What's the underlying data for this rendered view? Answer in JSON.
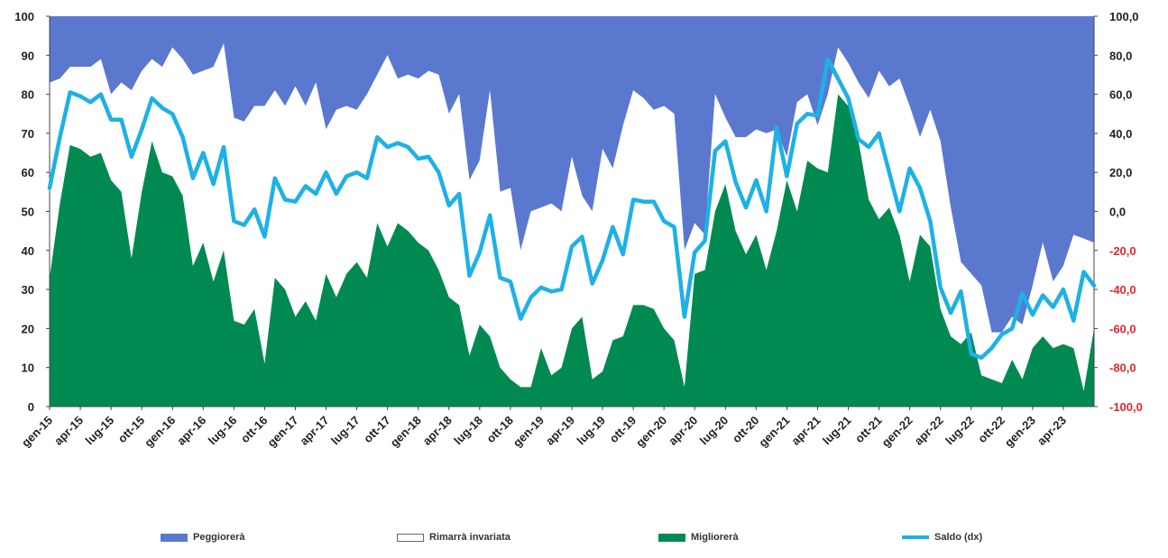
{
  "chart_data": {
    "type": "area",
    "title": "",
    "xlabel": "",
    "ylabel": "",
    "ylim": [
      0,
      100
    ],
    "y2lim": [
      -100,
      100
    ],
    "yticks": [
      "0",
      "10",
      "20",
      "30",
      "40",
      "50",
      "60",
      "70",
      "80",
      "90",
      "100"
    ],
    "y2ticks": [
      "-100,0",
      "-80,0",
      "-60,0",
      "-40,0",
      "-20,0",
      "0,0",
      "20,0",
      "40,0",
      "60,0",
      "80,0",
      "100,0"
    ],
    "xticks": [
      "gen-15",
      "apr-15",
      "lug-15",
      "ott-15",
      "gen-16",
      "apr-16",
      "lug-16",
      "ott-16",
      "gen-17",
      "apr-17",
      "lug-17",
      "ott-17",
      "gen-18",
      "apr-18",
      "lug-18",
      "ott-18",
      "gen-19",
      "apr-19",
      "lug-19",
      "ott-19",
      "gen-20",
      "apr-20",
      "lug-20",
      "ott-20",
      "gen-21",
      "apr-21",
      "lug-21",
      "ott-21",
      "gen-22",
      "apr-22",
      "lug-22",
      "ott-22",
      "gen-23",
      "apr-23"
    ],
    "months": 103,
    "colors": {
      "peggiorera": "#5b78cf",
      "invariata": "#ffffff",
      "migliorera": "#008a52",
      "saldo": "#1db1e6"
    },
    "series": [
      {
        "name": "Migliorerà",
        "axis": "left",
        "values": [
          33,
          52,
          67,
          66,
          64,
          65,
          58,
          55,
          38,
          55,
          68,
          60,
          59,
          54,
          36,
          42,
          32,
          40,
          22,
          21,
          25,
          11,
          33,
          30,
          23,
          27,
          22,
          34,
          28,
          34,
          37,
          33,
          47,
          41,
          47,
          45,
          42,
          40,
          35,
          28,
          26,
          13,
          21,
          18,
          10,
          7,
          5,
          5,
          15,
          8,
          10,
          20,
          23,
          7,
          9,
          17,
          18,
          26,
          26,
          25,
          20,
          17,
          5,
          34,
          35,
          50,
          57,
          45,
          39,
          44,
          35,
          45,
          58,
          50,
          63,
          61,
          60,
          80,
          77,
          68,
          53,
          48,
          51,
          44,
          32,
          44,
          41,
          25,
          18,
          16,
          19,
          8,
          7,
          6,
          12,
          7,
          15,
          18,
          15,
          16,
          15,
          4,
          20
        ]
      },
      {
        "name": "Rimarrà invariata",
        "axis": "left",
        "values": [
          50,
          32,
          20,
          21,
          23,
          24,
          22,
          28,
          43,
          31,
          21,
          27,
          33,
          35,
          49,
          44,
          55,
          53,
          52,
          52,
          52,
          66,
          48,
          47,
          59,
          50,
          61,
          37,
          48,
          43,
          39,
          47,
          38,
          49,
          37,
          40,
          42,
          46,
          50,
          47,
          54,
          45,
          42,
          63,
          45,
          49,
          35,
          45,
          36,
          44,
          40,
          44,
          31,
          43,
          57,
          44,
          54,
          55,
          53,
          51,
          57,
          58,
          35,
          13,
          9,
          30,
          17,
          24,
          30,
          27,
          35,
          26,
          6,
          28,
          17,
          11,
          20,
          12,
          11,
          15,
          26,
          38,
          31,
          40,
          45,
          25,
          35,
          43,
          33,
          21,
          15,
          23,
          12,
          13,
          11,
          14,
          16,
          24,
          17,
          20,
          29,
          39,
          22
        ]
      },
      {
        "name": "Peggiorerà",
        "axis": "left",
        "values": [
          17,
          16,
          13,
          13,
          13,
          11,
          20,
          17,
          19,
          14,
          11,
          13,
          8,
          11,
          15,
          14,
          13,
          7,
          26,
          27,
          23,
          23,
          19,
          23,
          18,
          23,
          17,
          29,
          24,
          23,
          24,
          20,
          15,
          10,
          16,
          15,
          16,
          14,
          15,
          25,
          20,
          42,
          37,
          19,
          45,
          44,
          60,
          50,
          49,
          48,
          50,
          36,
          46,
          50,
          34,
          39,
          28,
          19,
          21,
          24,
          23,
          25,
          60,
          53,
          56,
          20,
          26,
          31,
          31,
          29,
          30,
          29,
          36,
          22,
          20,
          28,
          20,
          8,
          12,
          17,
          21,
          14,
          18,
          16,
          23,
          31,
          24,
          32,
          49,
          63,
          66,
          69,
          81,
          81,
          77,
          79,
          69,
          58,
          68,
          64,
          56,
          57,
          58
        ]
      },
      {
        "name": "Saldo (dx)",
        "axis": "right",
        "values": [
          12,
          38,
          61,
          59,
          56,
          60,
          47,
          47,
          28,
          42,
          58,
          53,
          50,
          38,
          17,
          30,
          14,
          33,
          -5,
          -7,
          1,
          -13,
          17,
          6,
          5,
          13,
          9,
          20,
          9,
          18,
          20,
          17,
          38,
          33,
          35,
          33,
          27,
          28,
          20,
          3,
          9,
          -33,
          -21,
          -2,
          -34,
          -36,
          -55,
          -44,
          -39,
          -41,
          -40,
          -18,
          -13,
          -37,
          -25,
          -8,
          -22,
          6,
          5,
          5,
          -5,
          -8,
          -54,
          -21,
          -15,
          31,
          36,
          15,
          2,
          16,
          0,
          43,
          18,
          45,
          50,
          49,
          78,
          68,
          58,
          37,
          33,
          40,
          20,
          0,
          22,
          12,
          -5,
          -39,
          -52,
          -41,
          -73,
          -75,
          -70,
          -63,
          -60,
          -42,
          -53,
          -43,
          -49,
          -40,
          -56,
          -31,
          -38
        ]
      }
    ],
    "legend": [
      {
        "label": "Peggiorerà",
        "kind": "area",
        "color": "#5b78cf"
      },
      {
        "label": "Rimarrà invariata",
        "kind": "area",
        "color": "#ffffff"
      },
      {
        "label": "Migliorerà",
        "kind": "area",
        "color": "#008a52"
      },
      {
        "label": "Saldo (dx)",
        "kind": "line",
        "color": "#1db1e6"
      }
    ],
    "legend_position": "bottom",
    "grid": false
  }
}
